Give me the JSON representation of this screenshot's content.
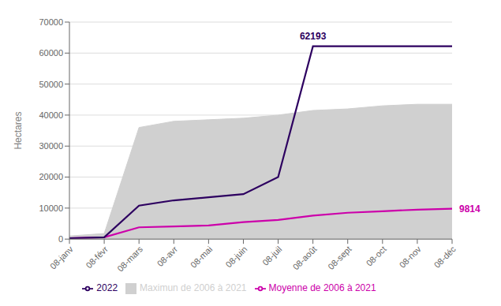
{
  "chart_data": {
    "type": "line",
    "ylabel": "Hectares",
    "categories": [
      "08-janv",
      "08-févr",
      "08-mars",
      "08-avr",
      "08-mai",
      "08-juin",
      "08-juil",
      "08-août",
      "08-sept",
      "08-oct",
      "08-nov",
      "08-déc"
    ],
    "series": [
      {
        "name": "Maximun de 2006 à 2021",
        "type": "area",
        "color": "#d0d0d0",
        "values": [
          1000,
          1800,
          36000,
          38000,
          38500,
          39000,
          40000,
          41500,
          42000,
          43000,
          43500,
          43500
        ],
        "lower": [
          0,
          0,
          0,
          0,
          0,
          0,
          0,
          0,
          0,
          0,
          0,
          0
        ]
      },
      {
        "name": "Moyenne de 2006 à 2021",
        "type": "line",
        "color": "#cc00aa",
        "values": [
          300,
          600,
          3800,
          4100,
          4400,
          5500,
          6200,
          7600,
          8500,
          9000,
          9500,
          9814
        ]
      },
      {
        "name": "2022",
        "type": "line",
        "color": "#2d0060",
        "values": [
          300,
          600,
          10800,
          12500,
          13500,
          14500,
          20000,
          62193,
          62193,
          62193,
          62193,
          62193
        ]
      }
    ],
    "annotations": [
      {
        "x": "08-août",
        "y": 62193,
        "text": "62193",
        "color": "#2d0060"
      },
      {
        "x": "08-déc",
        "y": 9814,
        "text": "9814",
        "color": "#cc00aa"
      }
    ],
    "ylim": [
      0,
      70000
    ],
    "yticks": [
      0,
      10000,
      20000,
      30000,
      40000,
      50000,
      60000,
      70000
    ],
    "grid": true
  }
}
